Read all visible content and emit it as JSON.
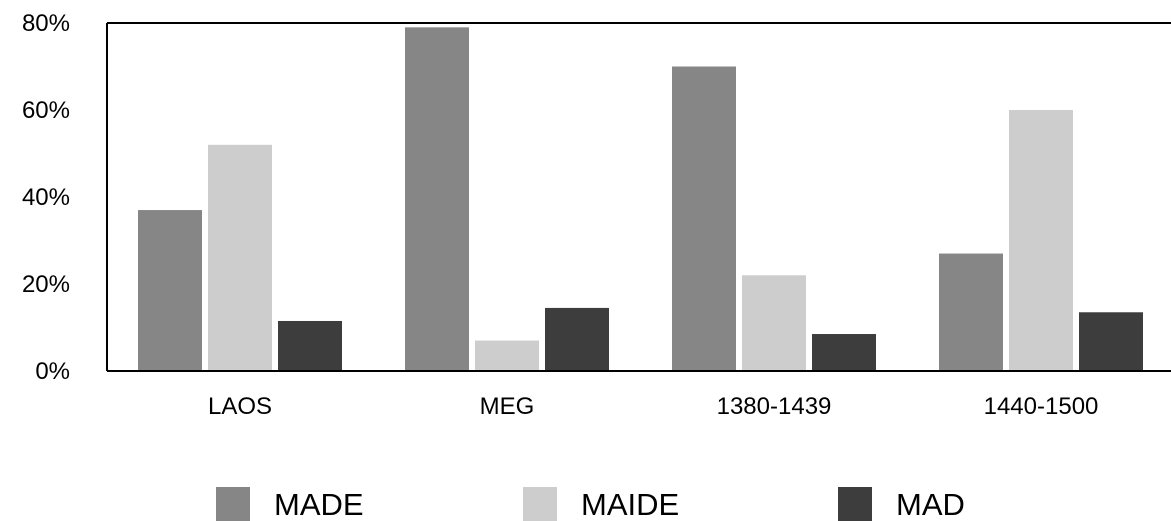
{
  "chart_data": {
    "type": "bar",
    "title": "",
    "xlabel": "",
    "ylabel": "",
    "categories": [
      "LAOS",
      "MEG",
      "1380-1439",
      "1440-1500"
    ],
    "series": [
      {
        "name": "MADE",
        "color": "#858685",
        "values": [
          37,
          79,
          70,
          27
        ]
      },
      {
        "name": "MAIDE",
        "color": "#cccdcc",
        "values": [
          52,
          7,
          22,
          60
        ]
      },
      {
        "name": "MAD",
        "color": "#3c3d3c",
        "values": [
          11.5,
          14.5,
          8.5,
          13.5
        ]
      }
    ],
    "ylim": [
      0,
      80
    ],
    "yticks": [
      0,
      20,
      40,
      60,
      80
    ],
    "ytick_labels": [
      "0%",
      "20%",
      "40%",
      "60%",
      "80%"
    ],
    "grid": false,
    "legend_position": "bottom"
  }
}
